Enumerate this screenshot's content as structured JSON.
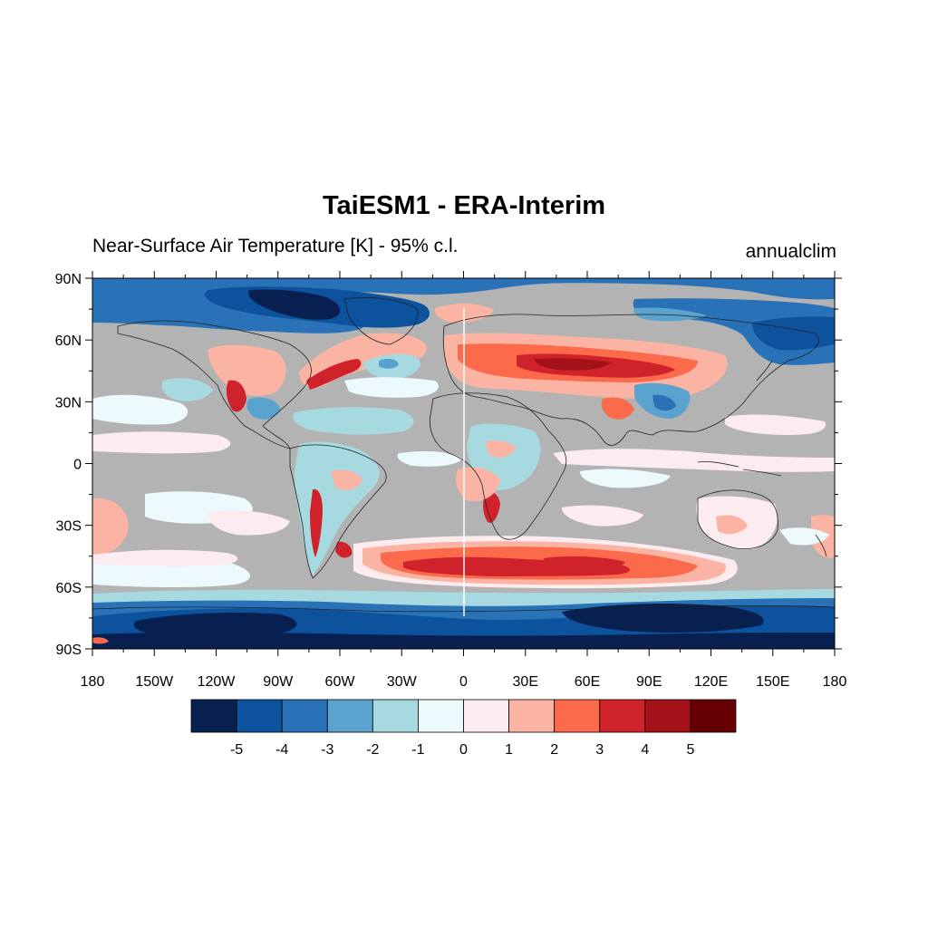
{
  "title": "TaiESM1 - ERA-Interim",
  "left_subtitle": "Near-Surface Air Temperature [K] - 95% c.l.",
  "right_subtitle": "annualclim",
  "map": {
    "projection": "cylindrical-equidistant",
    "lon_range": [
      -180,
      180
    ],
    "lat_range": [
      -90,
      90
    ],
    "insignificant_fill_color": "#b3b3b3",
    "lat_ticks": [
      "90N",
      "60N",
      "30N",
      "0",
      "30S",
      "60S",
      "90S"
    ],
    "lon_ticks": [
      "180",
      "150W",
      "120W",
      "90W",
      "60W",
      "30W",
      "0",
      "30E",
      "60E",
      "90E",
      "120E",
      "150E",
      "180"
    ]
  },
  "colorbar": {
    "colors": [
      "#08204f",
      "#0c529c",
      "#2a72b8",
      "#5ba3cf",
      "#a6d9e0",
      "#edfafd",
      "#fdecef",
      "#fbb4a4",
      "#fa6a4b",
      "#d0222b",
      "#a51119",
      "#670004"
    ],
    "labels": [
      "-5",
      "-4",
      "-3",
      "-2",
      "-1",
      "0",
      "1",
      "2",
      "3",
      "4",
      "5"
    ]
  }
}
